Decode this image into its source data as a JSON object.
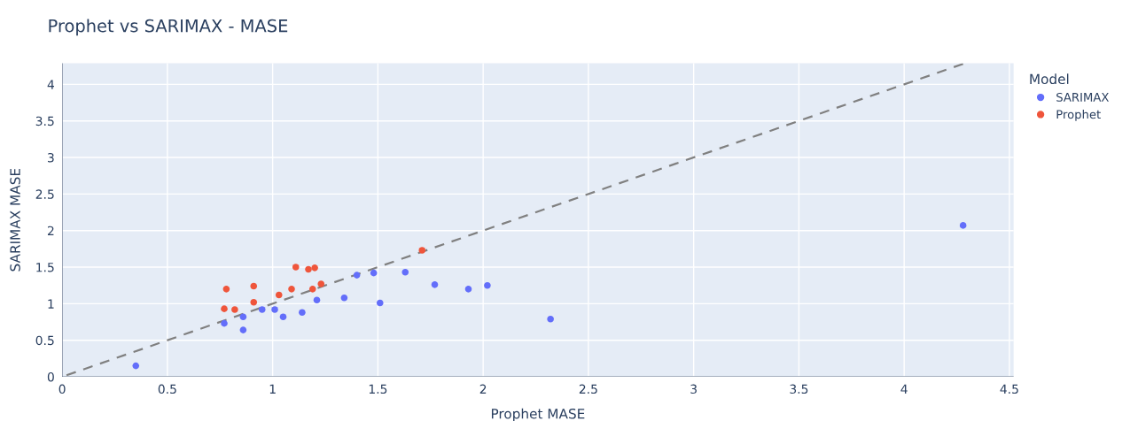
{
  "chart_data": {
    "type": "scatter",
    "title": "Prophet vs SARIMAX - MASE",
    "xlabel": "Prophet MASE",
    "ylabel": "SARIMAX MASE",
    "legend_title": "Model",
    "legend": "right",
    "grid": true,
    "marker": "circle",
    "xlim": [
      0,
      4.52
    ],
    "ylim": [
      0,
      4.29
    ],
    "xticks": [
      0,
      0.5,
      1,
      1.5,
      2,
      2.5,
      3,
      3.5,
      4,
      4.5
    ],
    "yticks": [
      0,
      0.5,
      1,
      1.5,
      2,
      2.5,
      3,
      3.5,
      4
    ],
    "series": [
      {
        "name": "SARIMAX",
        "color": "#636efa",
        "x": [
          0.35,
          0.77,
          0.86,
          0.86,
          0.95,
          1.01,
          1.05,
          1.14,
          1.21,
          1.34,
          1.4,
          1.48,
          1.51,
          1.63,
          1.77,
          1.93,
          2.02,
          2.32,
          4.28
        ],
        "values": [
          0.15,
          0.73,
          0.82,
          0.64,
          0.92,
          0.92,
          0.82,
          0.88,
          1.05,
          1.08,
          1.39,
          1.42,
          1.01,
          1.43,
          1.26,
          1.2,
          1.25,
          0.79,
          2.07
        ]
      },
      {
        "name": "Prophet",
        "color": "#ef553b",
        "x": [
          0.77,
          0.78,
          0.82,
          0.91,
          0.91,
          1.03,
          1.09,
          1.11,
          1.17,
          1.19,
          1.2,
          1.23,
          1.71
        ],
        "values": [
          0.93,
          1.2,
          0.92,
          1.02,
          1.24,
          1.12,
          1.2,
          1.5,
          1.47,
          1.2,
          1.49,
          1.27,
          1.73
        ]
      },
      {
        "type": "line",
        "color": "#808080",
        "line_style": "dashed",
        "marker": "none",
        "x": [
          0,
          4.28
        ],
        "values": [
          0,
          4.28
        ]
      }
    ]
  }
}
